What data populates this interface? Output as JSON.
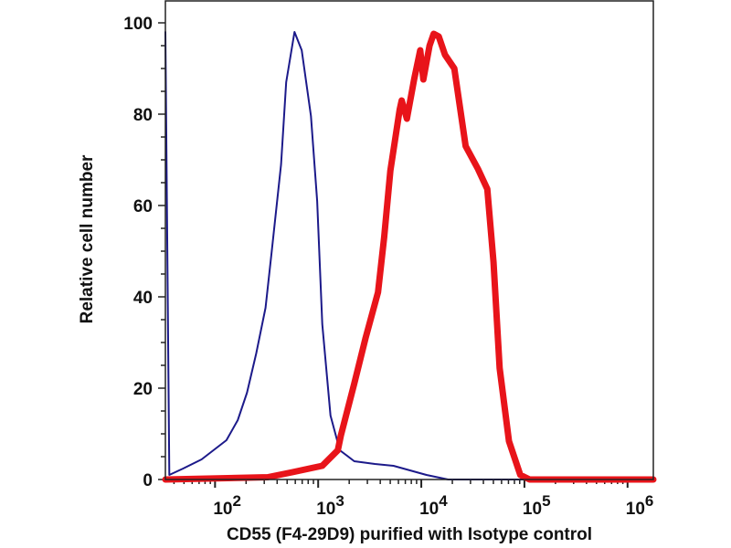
{
  "chart_data": {
    "type": "line",
    "title": "",
    "xlabel": "CD55 (F4-29D9) purified with Isotype control",
    "ylabel": "Relative cell number",
    "x_scale": "log",
    "xlim": [
      33,
      1778000
    ],
    "ylim": [
      0,
      100
    ],
    "grid": false,
    "legend": "none",
    "x_ticks": [
      {
        "value": 100,
        "base": "10",
        "exp": "2"
      },
      {
        "value": 1000,
        "base": "10",
        "exp": "3"
      },
      {
        "value": 10000,
        "base": "10",
        "exp": "4"
      },
      {
        "value": 100000,
        "base": "10",
        "exp": "5"
      },
      {
        "value": 1000000,
        "base": "10",
        "exp": "6"
      }
    ],
    "y_ticks": [
      0,
      20,
      40,
      60,
      80,
      100
    ],
    "series": [
      {
        "color": "#1c1a8a",
        "x": [
          33,
          36,
          49,
          74,
          129,
          166,
          204,
          251,
          309,
          355,
          437,
          490,
          589,
          692,
          851,
          977,
          1096,
          1318,
          1622,
          2239,
          3548,
          5370,
          11220,
          18200,
          1778000
        ],
        "y": [
          98,
          1,
          2.4,
          4.4,
          8.6,
          13,
          19,
          27.6,
          37.6,
          50,
          69,
          87,
          98,
          94,
          79.6,
          61,
          34,
          14,
          6.4,
          4,
          3.4,
          3,
          1,
          0,
          0
        ]
      },
      {
        "color": "#e8141a",
        "x": [
          33,
          324,
          562,
          1096,
          1549,
          1660,
          2239,
          2884,
          3802,
          4365,
          5012,
          6166,
          6457,
          7244,
          8511,
          9772,
          10470,
          12020,
          13180,
          14790,
          16980,
          20890,
          26920,
          35480,
          43650,
          50120,
          57540,
          70790,
          91200,
          112200,
          1778000
        ],
        "y": [
          0,
          0.5,
          1.6,
          3,
          6.4,
          9.6,
          21,
          31,
          41,
          53,
          67.6,
          81,
          83,
          79,
          87.6,
          94,
          87.6,
          95,
          97.6,
          97,
          93,
          90,
          73,
          68,
          63.6,
          47.6,
          24.4,
          8.4,
          1,
          0,
          0
        ]
      }
    ]
  }
}
